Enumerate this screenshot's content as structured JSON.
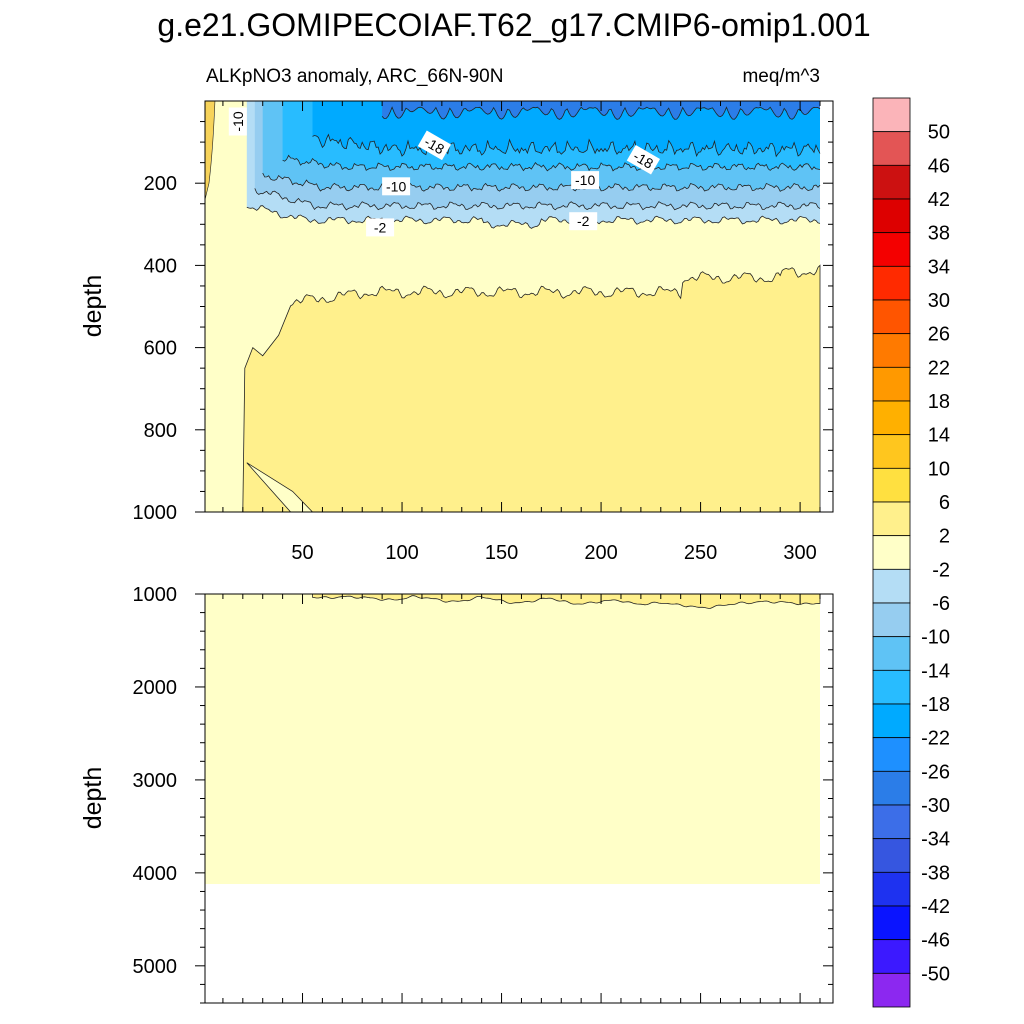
{
  "title": "g.e21.GOMIPECOIAF.T62_g17.CMIP6-omip1.001",
  "chart_data": {
    "type": "heatmap",
    "subtitle_left": "ALKpNO3 anomaly, ARC_66N-90N",
    "subtitle_right": "meq/m^3",
    "xlim": [
      1,
      310
    ],
    "x_ticks": [
      50,
      100,
      150,
      200,
      250,
      300
    ],
    "top_panel": {
      "ylabel": "depth",
      "ylim": [
        0,
        1000
      ],
      "y_ticks": [
        200,
        400,
        600,
        800,
        1000
      ],
      "contour_labels": [
        {
          "text": "-10",
          "x": 18,
          "y": 50
        },
        {
          "text": "-18",
          "x": 116,
          "y": 110
        },
        {
          "text": "-10",
          "x": 97,
          "y": 210
        },
        {
          "text": "-2",
          "x": 89,
          "y": 310
        },
        {
          "text": "-18",
          "x": 221,
          "y": 145
        },
        {
          "text": "-10",
          "x": 192,
          "y": 195
        },
        {
          "text": "-2",
          "x": 191,
          "y": 295
        }
      ]
    },
    "bottom_panel": {
      "ylabel": "depth",
      "ylim": [
        1000,
        5400
      ],
      "y_ticks": [
        1000,
        2000,
        3000,
        4000,
        5000
      ],
      "data_bottom_depth": 4120
    },
    "colorbar": {
      "levels": [
        50,
        46,
        42,
        38,
        34,
        30,
        26,
        22,
        18,
        14,
        10,
        6,
        2,
        -2,
        -6,
        -10,
        -14,
        -18,
        -22,
        -26,
        -30,
        -34,
        -38,
        -42,
        -46,
        -50
      ],
      "colors": [
        "#fbb4b9",
        "#e35555",
        "#cc1111",
        "#dd0000",
        "#f40000",
        "#ff2a00",
        "#ff5500",
        "#ff7a00",
        "#ff9900",
        "#ffb000",
        "#ffc61e",
        "#ffe040",
        "#fff08c",
        "#ffffc8",
        "#b4ddf5",
        "#96cdf0",
        "#5fc3f5",
        "#28bcff",
        "#00aaff",
        "#1e90ff",
        "#2b7de8",
        "#3c6ee8",
        "#3656e0",
        "#1e32f0",
        "#0a14ff",
        "#3c19ff",
        "#8c28f0"
      ]
    }
  }
}
